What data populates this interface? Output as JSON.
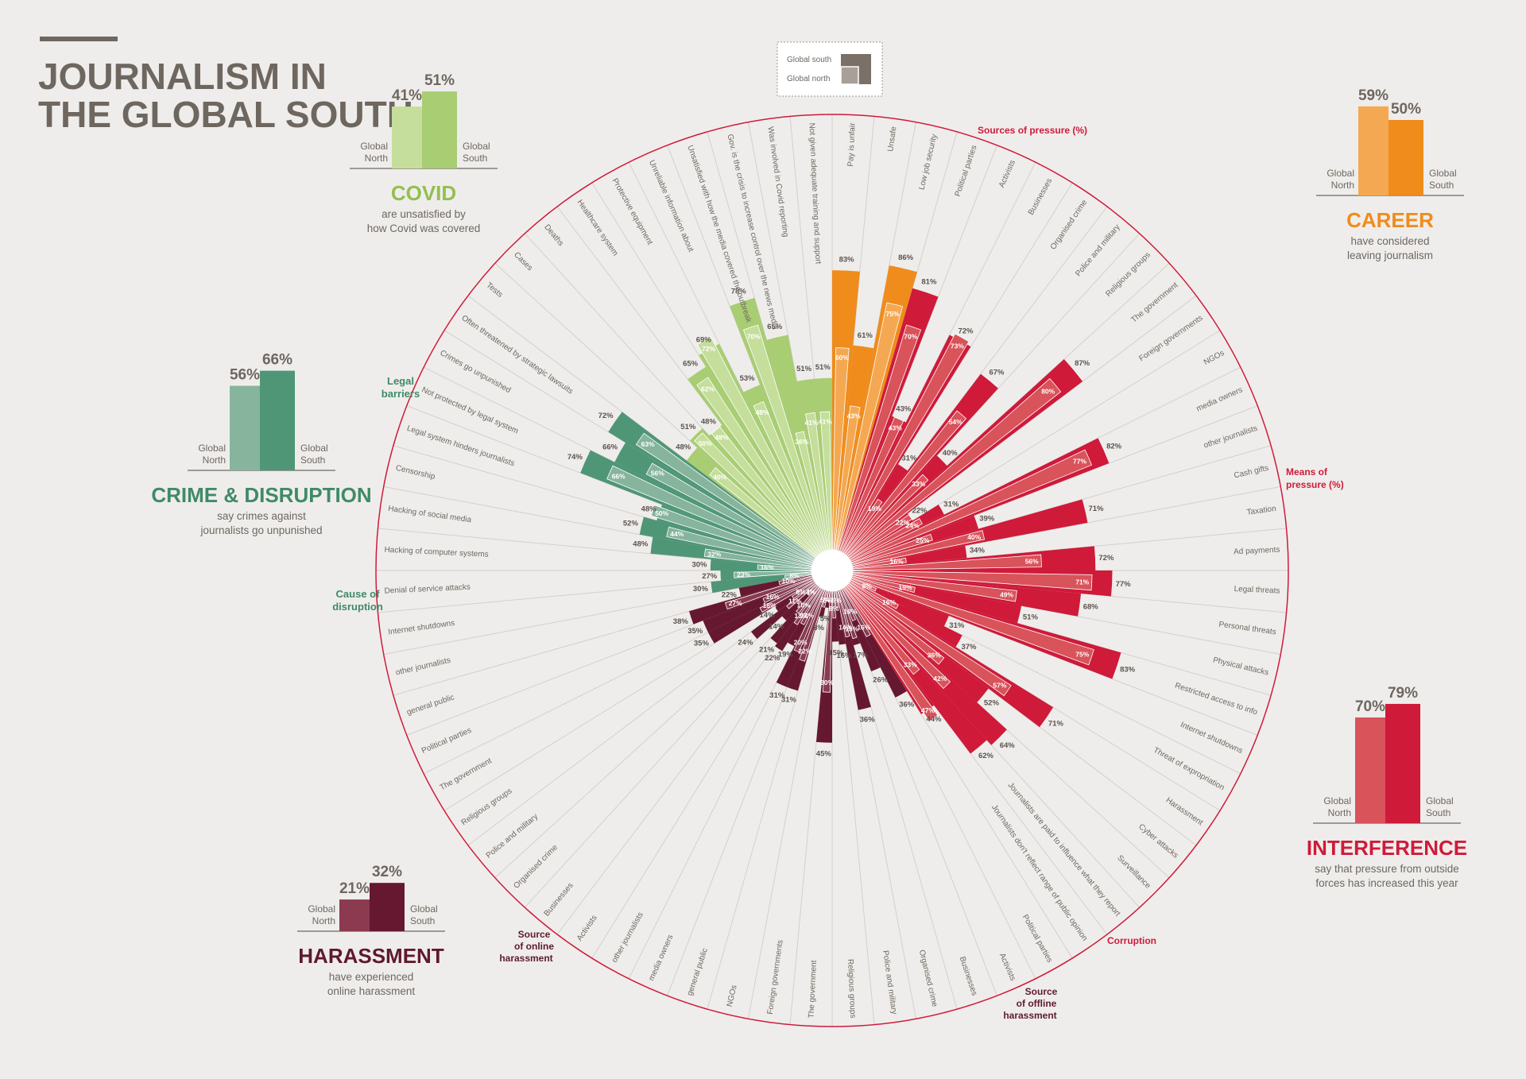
{
  "title_line1": "JOURNALISM IN",
  "title_line2": "THE GLOBAL SOUTH",
  "legend": {
    "south": "Global south",
    "north": "Global north"
  },
  "panels": [
    {
      "id": "covid",
      "heading": "COVID",
      "desc1": "are unsatisfied by",
      "desc2": "how Covid was covered",
      "north": 41,
      "south": 51,
      "north_label": "41%",
      "south_label": "51%",
      "lbl_north1": "Global",
      "lbl_north2": "North",
      "lbl_south1": "Global",
      "lbl_south2": "South",
      "color_north": "#c5de9b",
      "color_south": "#a8cd73",
      "heading_color": "#93bf4f"
    },
    {
      "id": "crime",
      "heading": "CRIME & DISRUPTION",
      "desc1": "say crimes against",
      "desc2": "journalists go unpunished",
      "north": 56,
      "south": 66,
      "north_label": "56%",
      "south_label": "66%",
      "lbl_north1": "Global",
      "lbl_north2": "North",
      "lbl_south1": "Global",
      "lbl_south2": "South",
      "color_north": "#86b49d",
      "color_south": "#4f9677",
      "heading_color": "#3f8a69"
    },
    {
      "id": "harassment",
      "heading": "HARASSMENT",
      "desc1": "have experienced",
      "desc2": "online harassment",
      "north": 21,
      "south": 32,
      "north_label": "21%",
      "south_label": "32%",
      "lbl_north1": "Global",
      "lbl_north2": "North",
      "lbl_south1": "Global",
      "lbl_south2": "South",
      "color_north": "#8b3a50",
      "color_south": "#661830",
      "heading_color": "#5e1a2e"
    },
    {
      "id": "career",
      "heading": "CAREER",
      "desc1": "have considered",
      "desc2": "leaving journalism",
      "north": 59,
      "south": 50,
      "north_label": "59%",
      "south_label": "50%",
      "lbl_north1": "Global",
      "lbl_north2": "North",
      "lbl_south1": "Global",
      "lbl_south2": "South",
      "color_north": "#f5a852",
      "color_south": "#ef8c1c",
      "heading_color": "#ef8c1c"
    },
    {
      "id": "interference",
      "heading": "INTERFERENCE",
      "desc1": "say that pressure from outside",
      "desc2": "forces has increased this year",
      "north": 70,
      "south": 79,
      "north_label": "70%",
      "south_label": "79%",
      "lbl_north1": "Global",
      "lbl_north2": "North",
      "lbl_south1": "Global",
      "lbl_south2": "South",
      "color_north": "#d9535a",
      "color_south": "#cf1a3a",
      "heading_color": "#cf1a3a"
    }
  ],
  "group_labels": {
    "legal1": "Legal",
    "legal2": "barriers",
    "disruption1": "Cause of",
    "disruption2": "disruption",
    "online1": "Source",
    "online2": "of online",
    "online3": "harassment",
    "offline1": "Source",
    "offline2": "of offline",
    "offline3": "harassment",
    "corruption": "Corruption",
    "pressure": "Sources of pressure (%)",
    "means1": "Means of",
    "means2": "pressure (%)"
  },
  "chart_data": {
    "type": "radial-bar",
    "axis_max": 100,
    "series": [
      "Global south",
      "Global north"
    ],
    "categories": [
      {
        "label": "Pay is unfair",
        "south": 83,
        "north": 60,
        "group": "career"
      },
      {
        "label": "Unsafe",
        "south": 61,
        "north": 43,
        "group": "career"
      },
      {
        "label": "Low job security",
        "south": 86,
        "north": 75,
        "group": "career"
      },
      {
        "label": "Political parties",
        "south": 81,
        "north": 70,
        "group": "sources_of_pressure"
      },
      {
        "label": "Activists",
        "south": 43,
        "north": 43,
        "group": "sources_of_pressure"
      },
      {
        "label": "Businesses",
        "south": 72,
        "north": 73,
        "group": "sources_of_pressure"
      },
      {
        "label": "Organised crime",
        "south": 31,
        "north": 19,
        "group": "sources_of_pressure"
      },
      {
        "label": "Police and military",
        "south": 67,
        "north": 54,
        "group": "sources_of_pressure"
      },
      {
        "label": "Religious groups",
        "south": 40,
        "north": 33,
        "group": "sources_of_pressure"
      },
      {
        "label": "The government",
        "south": 87,
        "north": 80,
        "group": "sources_of_pressure"
      },
      {
        "label": "Foreign governments",
        "south": 22,
        "north": 22,
        "group": "sources_of_pressure"
      },
      {
        "label": "NGOs",
        "south": 31,
        "north": 24,
        "group": "sources_of_pressure"
      },
      {
        "label": "media owners",
        "south": 82,
        "north": 77,
        "group": "sources_of_pressure"
      },
      {
        "label": "other journalists",
        "south": 39,
        "north": 25,
        "group": "sources_of_pressure"
      },
      {
        "label": "Cash gifts",
        "south": 71,
        "north": 40,
        "group": "means_of_pressure"
      },
      {
        "label": "Taxation",
        "south": 34,
        "north": 16,
        "group": "means_of_pressure"
      },
      {
        "label": "Ad payments",
        "south": 72,
        "north": 56,
        "group": "means_of_pressure"
      },
      {
        "label": "Legal threats",
        "south": 77,
        "north": 71,
        "group": "means_of_pressure"
      },
      {
        "label": "Personal threats",
        "south": 68,
        "north": 49,
        "group": "means_of_pressure"
      },
      {
        "label": "Physical attacks",
        "south": 51,
        "north": 19,
        "group": "means_of_pressure"
      },
      {
        "label": "Restricted access to info",
        "south": 83,
        "north": 75,
        "group": "means_of_pressure"
      },
      {
        "label": "Internet shutdowns",
        "south": 31,
        "north": 8,
        "group": "means_of_pressure"
      },
      {
        "label": "Threat of expropriation",
        "south": 37,
        "north": 16,
        "group": "means_of_pressure"
      },
      {
        "label": "Harassment",
        "south": 71,
        "north": 57,
        "group": "means_of_pressure"
      },
      {
        "label": "Cyber attacks",
        "south": 52,
        "north": 36,
        "group": "means_of_pressure"
      },
      {
        "label": "Surveillance",
        "south": 64,
        "north": 42,
        "group": "means_of_pressure"
      },
      {
        "label": "Journalists are paid to influence what they report",
        "south": 62,
        "north": 33,
        "group": "corruption"
      },
      {
        "label": "Journalists don't reflect range of public opinion",
        "south": 44,
        "north": 47,
        "group": "corruption"
      },
      {
        "label": "Political parties",
        "south": 36,
        "north": 16,
        "group": "offline_harassment"
      },
      {
        "label": "Activists",
        "south": 26,
        "north": 10,
        "group": "offline_harassment"
      },
      {
        "label": "Businesses",
        "south": 17,
        "north": 15,
        "group": "offline_harassment"
      },
      {
        "label": "Organised crime",
        "south": 36,
        "north": 14,
        "group": "offline_harassment"
      },
      {
        "label": "Police and military",
        "south": 16,
        "north": 5,
        "group": "offline_harassment"
      },
      {
        "label": "Religious groups",
        "south": 15,
        "north": 8,
        "group": "offline_harassment"
      },
      {
        "label": "The government",
        "south": 45,
        "north": 30,
        "group": "offline_harassment"
      },
      {
        "label": "Foreign governments",
        "south": 5,
        "north": 3,
        "group": "offline_harassment"
      },
      {
        "label": "NGOs",
        "south": 8,
        "north": 5,
        "group": "offline_harassment"
      },
      {
        "label": "general public",
        "south": 31,
        "north": 22,
        "group": "offline_harassment"
      },
      {
        "label": "media owners",
        "south": 31,
        "north": 20,
        "group": "offline_harassment"
      },
      {
        "label": "other journalists",
        "south": 19,
        "north": 12,
        "group": "offline_harassment"
      },
      {
        "label": "Activists",
        "south": 22,
        "north": 13,
        "group": "online_harassment"
      },
      {
        "label": "Businesses",
        "south": 21,
        "north": 10,
        "group": "online_harassment"
      },
      {
        "label": "Organised crime",
        "south": 14,
        "north": 4,
        "group": "online_harassment"
      },
      {
        "label": "Police and military",
        "south": 24,
        "north": 11,
        "group": "online_harassment"
      },
      {
        "label": "Religious groups",
        "south": 14,
        "north": 8,
        "group": "online_harassment"
      },
      {
        "label": "The government",
        "south": 35,
        "north": 18,
        "group": "online_harassment"
      },
      {
        "label": "Political parties",
        "south": 35,
        "north": 16,
        "group": "online_harassment"
      },
      {
        "label": "general public",
        "south": 38,
        "north": 27,
        "group": "online_harassment"
      },
      {
        "label": "other journalists",
        "south": 22,
        "north": 10,
        "group": "online_harassment"
      },
      {
        "label": "Internet shutdowns",
        "south": 30,
        "north": 8,
        "group": "disruption"
      },
      {
        "label": "Denial of service attacks",
        "south": 27,
        "north": 23,
        "group": "disruption"
      },
      {
        "label": "Hacking of computer systems",
        "south": 30,
        "north": 16,
        "group": "disruption"
      },
      {
        "label": "Hacking of social media",
        "south": 48,
        "north": 32,
        "group": "disruption"
      },
      {
        "label": "Censorship",
        "south": 52,
        "north": 44,
        "group": "disruption"
      },
      {
        "label": "Legal system hinders journalists",
        "south": 48,
        "north": 50,
        "group": "legal"
      },
      {
        "label": "Not protected by legal system",
        "south": 74,
        "north": 66,
        "group": "legal"
      },
      {
        "label": "Crimes go unpunished",
        "south": 66,
        "north": 56,
        "group": "legal"
      },
      {
        "label": "Often threatened by strategic lawsuits",
        "south": 72,
        "north": 63,
        "group": "legal"
      },
      {
        "label": "Tests",
        "south": 48,
        "north": 40,
        "group": "covid"
      },
      {
        "label": "Cases",
        "south": 51,
        "north": 50,
        "group": "covid"
      },
      {
        "label": "Deaths",
        "south": 48,
        "north": 48,
        "group": "covid"
      },
      {
        "label": "Healthcare system",
        "south": 65,
        "north": 62,
        "group": "covid"
      },
      {
        "label": "Protective equipment",
        "south": 69,
        "north": 72,
        "group": "covid"
      },
      {
        "label": "Unreliable information about",
        "south": 53,
        "north": 48,
        "group": "covid"
      },
      {
        "label": "Unsatisfied with how the media covered the outbreak",
        "south": 78,
        "north": 70,
        "group": "covid"
      },
      {
        "label": "Gov. is the crisis to increase control over the news media",
        "south": 65,
        "north": 36,
        "group": "covid"
      },
      {
        "label": "Was involved in Covid reporting",
        "south": 51,
        "north": 41,
        "group": "covid"
      },
      {
        "label": "Not given adequate training and support",
        "south": 51,
        "north": 41,
        "group": "covid"
      }
    ]
  }
}
